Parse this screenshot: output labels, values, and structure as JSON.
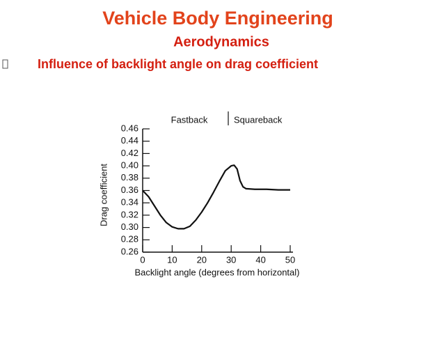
{
  "slide": {
    "title": "Vehicle Body Engineering",
    "subtitle": "Aerodynamics",
    "bullet": "Influence of backlight angle on drag coefficient"
  },
  "chart_data": {
    "type": "line",
    "xlabel": "Backlight angle (degrees from horizontal)",
    "ylabel": "Drag coefficient",
    "annotations": [
      "Fastback",
      "Squareback"
    ],
    "x": [
      0,
      2,
      4,
      6,
      8,
      10,
      12,
      14,
      16,
      18,
      20,
      22,
      24,
      26,
      28,
      30,
      31,
      32,
      33,
      34,
      35,
      38,
      42,
      46,
      50
    ],
    "series": [
      {
        "name": "Drag coefficient",
        "color": "#111111",
        "values": [
          0.36,
          0.35,
          0.335,
          0.32,
          0.308,
          0.301,
          0.298,
          0.298,
          0.302,
          0.312,
          0.325,
          0.34,
          0.357,
          0.375,
          0.392,
          0.4,
          0.401,
          0.395,
          0.376,
          0.366,
          0.363,
          0.362,
          0.362,
          0.361,
          0.361
        ]
      }
    ],
    "xlim": [
      0,
      50
    ],
    "xticks": [
      0,
      10,
      20,
      30,
      40,
      50
    ],
    "ylim": [
      0.26,
      0.46
    ],
    "yticks": [
      0.26,
      0.28,
      {
        "value": 0.3,
        "label": "0.30"
      },
      0.32,
      0.34,
      0.36,
      0.38,
      {
        "value": 0.4,
        "label": "0.40"
      },
      0.42,
      0.44,
      0.46
    ]
  }
}
